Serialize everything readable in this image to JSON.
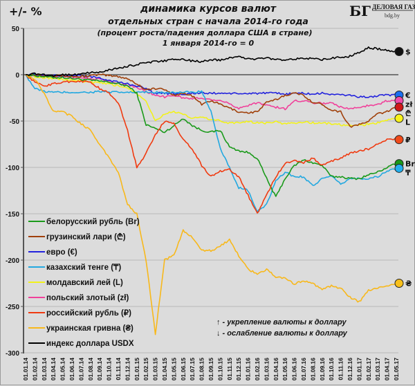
{
  "chart_data": {
    "type": "line",
    "title": "динамика курсов валют",
    "subtitle_line1": "отдельных стран с начала 2014-го года",
    "subtitle_line2": "(процент роста/падения доллара США в стране)",
    "subtitle_line3": "1 января 2014-го = 0",
    "ylabel": "+/- %",
    "xlabel": "",
    "ylim": [
      -300,
      50
    ],
    "yticks": [
      "50",
      "0",
      "-50",
      "-100",
      "-150",
      "-200",
      "-250",
      "-300"
    ],
    "ytick_values": [
      50,
      0,
      -50,
      -100,
      -150,
      -200,
      -250,
      -300
    ],
    "grid": true,
    "legend_position": "bottom-left",
    "x": [
      "01.01.14",
      "01.02.14",
      "01.03.14",
      "01.04.14",
      "01.05.14",
      "01.06.14",
      "01.07.14",
      "01.08.14",
      "01.09.14",
      "01.10.14",
      "01.11.14",
      "01.12.14",
      "01.01.15",
      "01.02.15",
      "01.03.15",
      "01.04.15",
      "01.05.15",
      "01.06.15",
      "01.07.15",
      "01.08.15",
      "01.09.15",
      "01.10.15",
      "01.11.15",
      "01.12.15",
      "01.01.16",
      "01.02.16",
      "01.03.16",
      "01.04.16",
      "01.05.16",
      "01.06.16",
      "01.07.16",
      "01.08.16",
      "01.09.16",
      "01.10.16",
      "01.11.16",
      "01.12.16",
      "01.01.17",
      "01.02.17",
      "01.03.17",
      "01.04.17",
      "01.05.17"
    ],
    "series": [
      {
        "name": "белорусский рубль (Br)",
        "symbol": "Br",
        "color": "#1a9a1a",
        "values": [
          0,
          -1,
          -2,
          -3,
          -3,
          -4,
          -5,
          -6,
          -7,
          -8,
          -10,
          -12,
          -20,
          -54,
          -58,
          -62,
          -55,
          -47,
          -55,
          -60,
          -62,
          -60,
          -78,
          -82,
          -84,
          -90,
          -112,
          -132,
          -112,
          -98,
          -92,
          -95,
          -98,
          -110,
          -110,
          -112,
          -112,
          -108,
          -105,
          -100,
          -96
        ]
      },
      {
        "name": "грузинский лари (₾)",
        "symbol": "₾",
        "color": "#a0400a",
        "values": [
          0,
          0,
          -1,
          -1,
          -1,
          -2,
          -2,
          -1,
          0,
          -1,
          -2,
          -4,
          -10,
          -16,
          -15,
          -16,
          -22,
          -20,
          -23,
          -32,
          -28,
          -32,
          -36,
          -40,
          -41,
          -40,
          -30,
          -27,
          -22,
          -20,
          -22,
          -30,
          -32,
          -38,
          -40,
          -56,
          -54,
          -50,
          -42,
          -40,
          -35
        ]
      },
      {
        "name": "евро (€)",
        "symbol": "€",
        "color": "#2222dd",
        "values": [
          0,
          0,
          -1,
          -1,
          -1,
          -1,
          -1,
          -2,
          -4,
          -6,
          -8,
          -10,
          -12,
          -15,
          -20,
          -20,
          -20,
          -21,
          -20,
          -20,
          -20,
          -20,
          -20,
          -21,
          -20,
          -20,
          -20,
          -20,
          -21,
          -20,
          -20,
          -21,
          -20,
          -21,
          -22,
          -22,
          -24,
          -24,
          -23,
          -22,
          -22
        ]
      },
      {
        "name": "казахский тенге (₸)",
        "symbol": "₸",
        "color": "#22a8e0",
        "values": [
          0,
          -15,
          -18,
          -19,
          -19,
          -19,
          -19,
          -19,
          -18,
          -19,
          -19,
          -19,
          -19,
          -19,
          -19,
          -19,
          -19,
          -19,
          -19,
          -18,
          -40,
          -80,
          -100,
          -122,
          -125,
          -148,
          -140,
          -115,
          -105,
          -110,
          -110,
          -120,
          -112,
          -110,
          -118,
          -112,
          -112,
          -112,
          -110,
          -104,
          -101
        ]
      },
      {
        "name": "молдавский лей (L)",
        "symbol": "L",
        "color": "#f2f21a",
        "values": [
          0,
          -2,
          -3,
          -4,
          -5,
          -6,
          -7,
          -8,
          -9,
          -10,
          -12,
          -14,
          -20,
          -28,
          -50,
          -42,
          -40,
          -43,
          -47,
          -46,
          -48,
          -50,
          -52,
          -52,
          -50,
          -52,
          -52,
          -51,
          -53,
          -52,
          -51,
          -52,
          -52,
          -53,
          -54,
          -55,
          -55,
          -53,
          -52,
          -49,
          -47
        ]
      },
      {
        "name": "польский злотый (zł)",
        "symbol": "zł",
        "color": "#f0409a",
        "values": [
          0,
          -1,
          -1,
          -2,
          -2,
          -3,
          -3,
          -4,
          -5,
          -7,
          -9,
          -11,
          -14,
          -18,
          -22,
          -24,
          -22,
          -25,
          -26,
          -25,
          -27,
          -27,
          -32,
          -36,
          -33,
          -30,
          -33,
          -35,
          -37,
          -28,
          -28,
          -30,
          -31,
          -30,
          -35,
          -37,
          -35,
          -33,
          -32,
          -28,
          -28
        ]
      },
      {
        "name": "российский рубль (₽)",
        "symbol": "₽",
        "color": "#f03a10",
        "values": [
          0,
          -8,
          -12,
          -10,
          -8,
          -7,
          -7,
          -8,
          -15,
          -20,
          -30,
          -60,
          -100,
          -85,
          -65,
          -50,
          -52,
          -70,
          -80,
          -98,
          -110,
          -104,
          -102,
          -110,
          -130,
          -150,
          -130,
          -110,
          -96,
          -92,
          -95,
          -90,
          -98,
          -93,
          -90,
          -85,
          -82,
          -80,
          -75,
          -70,
          -70
        ]
      },
      {
        "name": "украинская гривна (₴)",
        "symbol": "₴",
        "color": "#f8b81a",
        "values": [
          0,
          -5,
          -20,
          -40,
          -40,
          -45,
          -53,
          -60,
          -75,
          -90,
          -105,
          -140,
          -150,
          -200,
          -280,
          -200,
          -195,
          -168,
          -175,
          -190,
          -190,
          -185,
          -178,
          -195,
          -210,
          -215,
          -210,
          -218,
          -220,
          -226,
          -222,
          -225,
          -232,
          -228,
          -230,
          -240,
          -245,
          -233,
          -230,
          -228,
          -225
        ]
      },
      {
        "name": "индекс доллара USDX",
        "symbol": "$",
        "color": "#000000",
        "values": [
          0,
          1,
          0,
          -1,
          0,
          0,
          1,
          2,
          3,
          5,
          7,
          9,
          11,
          13,
          14,
          15,
          17,
          16,
          15,
          14,
          16,
          16,
          18,
          20,
          17,
          17,
          18,
          17,
          16,
          17,
          18,
          17,
          16,
          18,
          19,
          20,
          24,
          29,
          28,
          26,
          25
        ]
      }
    ],
    "end_markers": [
      {
        "symbol": "$",
        "fill": "#111111"
      },
      {
        "symbol": "€",
        "fill": "#1a6ef0"
      },
      {
        "symbol": "zł",
        "fill": "#f04aa8"
      },
      {
        "symbol": "₾",
        "fill": "#d01818"
      },
      {
        "symbol": "L",
        "fill": "#f8f21a"
      },
      {
        "symbol": "₽",
        "fill": "#f04a1a"
      },
      {
        "symbol": "Br",
        "fill": "#1a9a1a"
      },
      {
        "symbol": "₸",
        "fill": "#22b0ee"
      },
      {
        "symbol": "₴",
        "fill": "#f8c01a"
      }
    ],
    "annotations": [
      "↑ - укрепление валюты к доллару",
      "↓ - ослабление валюты к доллару"
    ]
  },
  "logo": {
    "mark": "БГ",
    "name": "ДЕЛОВАЯ ГАЗЕТА",
    "url": "bdg.by"
  }
}
